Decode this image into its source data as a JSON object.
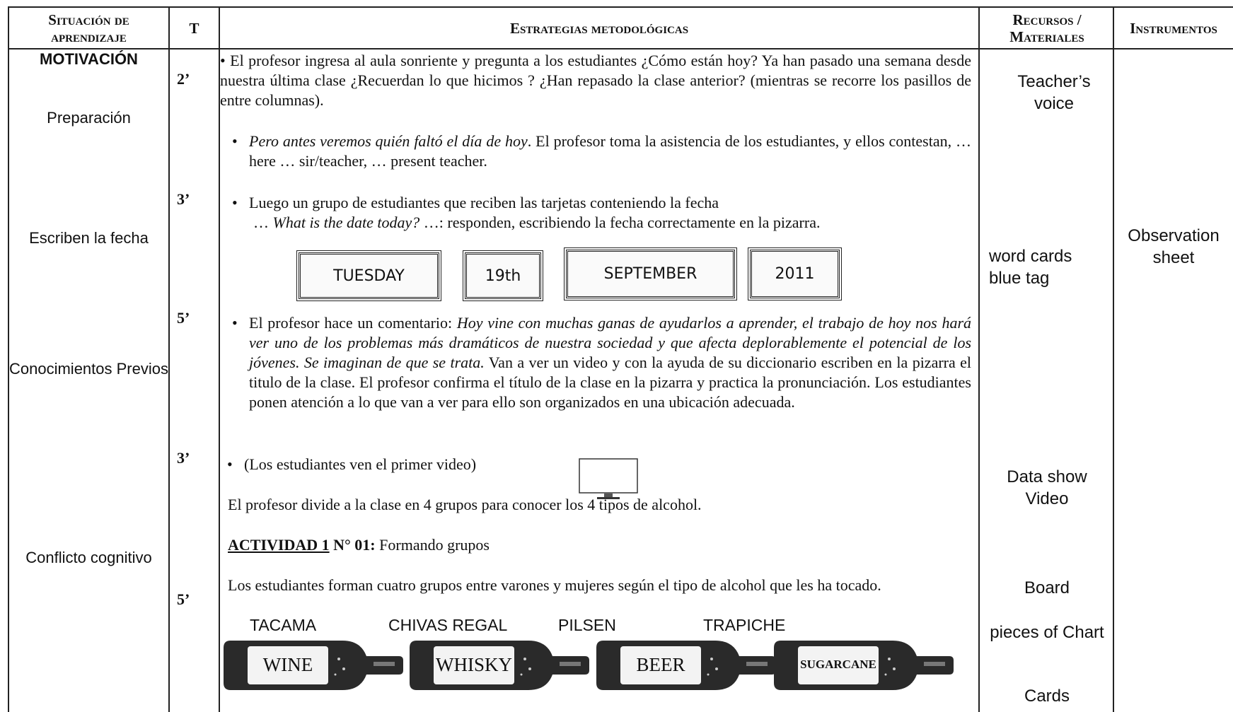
{
  "table": {
    "columns": [
      "Situación de aprendizaje",
      "T",
      "Estrategias metodológicas",
      "Recursos / Materiales",
      "Instrumentos"
    ],
    "stages": [
      "MOTIVACIÓN",
      "Preparación",
      "Escriben la fecha",
      "Conocimientos Previos",
      "Conflicto cognitivo"
    ],
    "times": [
      "2’",
      "3’",
      "5’",
      "3’",
      "5’"
    ],
    "paragraphs": [
      [
        {
          "text": "El profesor ingresa al aula sonriente y pregunta a los estudiantes ¿Cómo están hoy? Ya han pasado una semana desde nuestra última clase ¿Recuerdan lo que hicimos ? ¿Han repasado la clase anterior? (mientras se recorre los pasillos de entre columnas)."
        }
      ],
      [
        {
          "text": "Pero antes veremos quién faltó el día de hoy",
          "style": "italic"
        },
        {
          "text": ". El profesor toma la asistencia de los estudiantes, y ellos contestan, … here … sir/teacher, … present teacher."
        }
      ],
      [
        {
          "text": "Luego un grupo de estudiantes que reciben las tarjetas conteniendo la fecha"
        }
      ],
      [
        {
          "text": "… "
        },
        {
          "text": "What is the date today?",
          "style": "italic"
        },
        {
          "text": " …: responden, escribiendo la fecha correctamente en la pizarra."
        }
      ],
      [
        {
          "text": "El profesor hace un comentario: "
        },
        {
          "text": "Hoy vine con muchas ganas de ayudarlos a aprender, el trabajo de hoy nos hará ver uno de los problemas más dramáticos de nuestra sociedad y que afecta deplorablemente el potencial de los jóvenes. Se imaginan de que se trata.",
          "style": "italic"
        },
        {
          "text": " Van a ver un video y con la ayuda de su diccionario escriben en la pizarra el titulo de la clase. El profesor confirma el título de la clase en la pizarra y practica la pronunciación. Los estudiantes ponen atención a lo que van a ver para ello son organizados en una ubicación adecuada."
        }
      ],
      [
        {
          "text": "(Los estudiantes ven el primer video)"
        }
      ],
      [
        {
          "text": "El profesor divide a la clase en 4 grupos para conocer los 4 tipos de alcohol."
        }
      ],
      [
        {
          "text": "ACTIVIDAD 1",
          "style": "bold underline"
        },
        {
          "text": " N° 01:",
          "style": "bold"
        },
        {
          "text": " Formando grupos"
        }
      ],
      [
        {
          "text": "Los estudiantes forman cuatro grupos entre varones y mujeres según el tipo de alcohol que les ha tocado."
        }
      ]
    ],
    "date_cards": [
      "TUESDAY",
      "19th",
      "SEPTEMBER",
      "2011"
    ],
    "bottles": [
      {
        "brand": "TACAMA",
        "label": "WINE"
      },
      {
        "brand": "CHIVAS REGAL",
        "label": "WHISKY"
      },
      {
        "brand": "PILSEN",
        "label": "BEER"
      },
      {
        "brand": "TRAPICHE",
        "label": "SUGARCANE"
      }
    ],
    "resources": [
      "Teacher’s voice",
      "word cards blue tag",
      "Data show Video",
      "Board",
      "pieces of Chart",
      "Cards"
    ],
    "instruments": "Observation sheet"
  }
}
